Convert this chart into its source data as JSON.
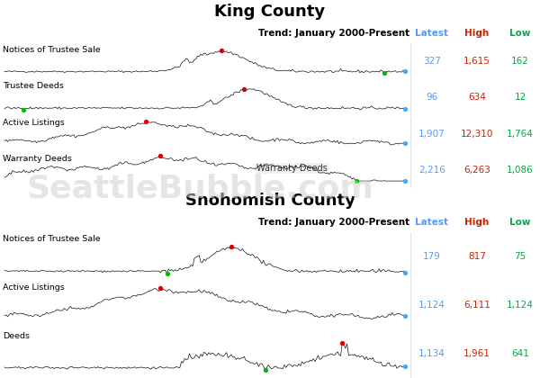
{
  "title_king": "King County",
  "title_snohomish": "Snohomish County",
  "trend_label": "Trend: January 2000-Present",
  "col_labels": [
    "Latest",
    "High",
    "Low"
  ],
  "col_colors": [
    "#5599ff",
    "#cc2200",
    "#00aa44"
  ],
  "king_rows": [
    {
      "label": "Notices of Trustee Sale",
      "latest": "327",
      "high": "1,615",
      "low": "162",
      "min_dot": true,
      "in_label": null
    },
    {
      "label": "Trustee Deeds",
      "latest": "96",
      "high": "634",
      "low": "12",
      "min_dot": true,
      "in_label": null
    },
    {
      "label": "Active Listings",
      "latest": "1,907",
      "high": "12,310",
      "low": "1,764",
      "min_dot": false,
      "in_label": null
    },
    {
      "label": "Warranty Deeds",
      "latest": "2,216",
      "high": "6,263",
      "low": "1,086",
      "min_dot": true,
      "in_label": "Warranty Deeds"
    }
  ],
  "snohomish_rows": [
    {
      "label": "Notices of Trustee Sale",
      "latest": "179",
      "high": "817",
      "low": "75",
      "min_dot": true,
      "in_label": null
    },
    {
      "label": "Active Listings",
      "latest": "1,124",
      "high": "6,111",
      "low": "1,124",
      "min_dot": false,
      "in_label": null
    },
    {
      "label": "Deeds",
      "latest": "1,134",
      "high": "1,961",
      "low": "641",
      "min_dot": true,
      "in_label": null
    }
  ],
  "bg_color": "#ffffff",
  "line_color": "#111111",
  "dot_high": "#dd0000",
  "dot_low": "#00bb00",
  "dot_latest": "#44aaff",
  "divider_color": "#000000",
  "watermark": "SeattleBubble.com",
  "watermark_color": "#d0d0d0",
  "row_colors": [
    "#ffffff",
    "#eef2ff"
  ]
}
